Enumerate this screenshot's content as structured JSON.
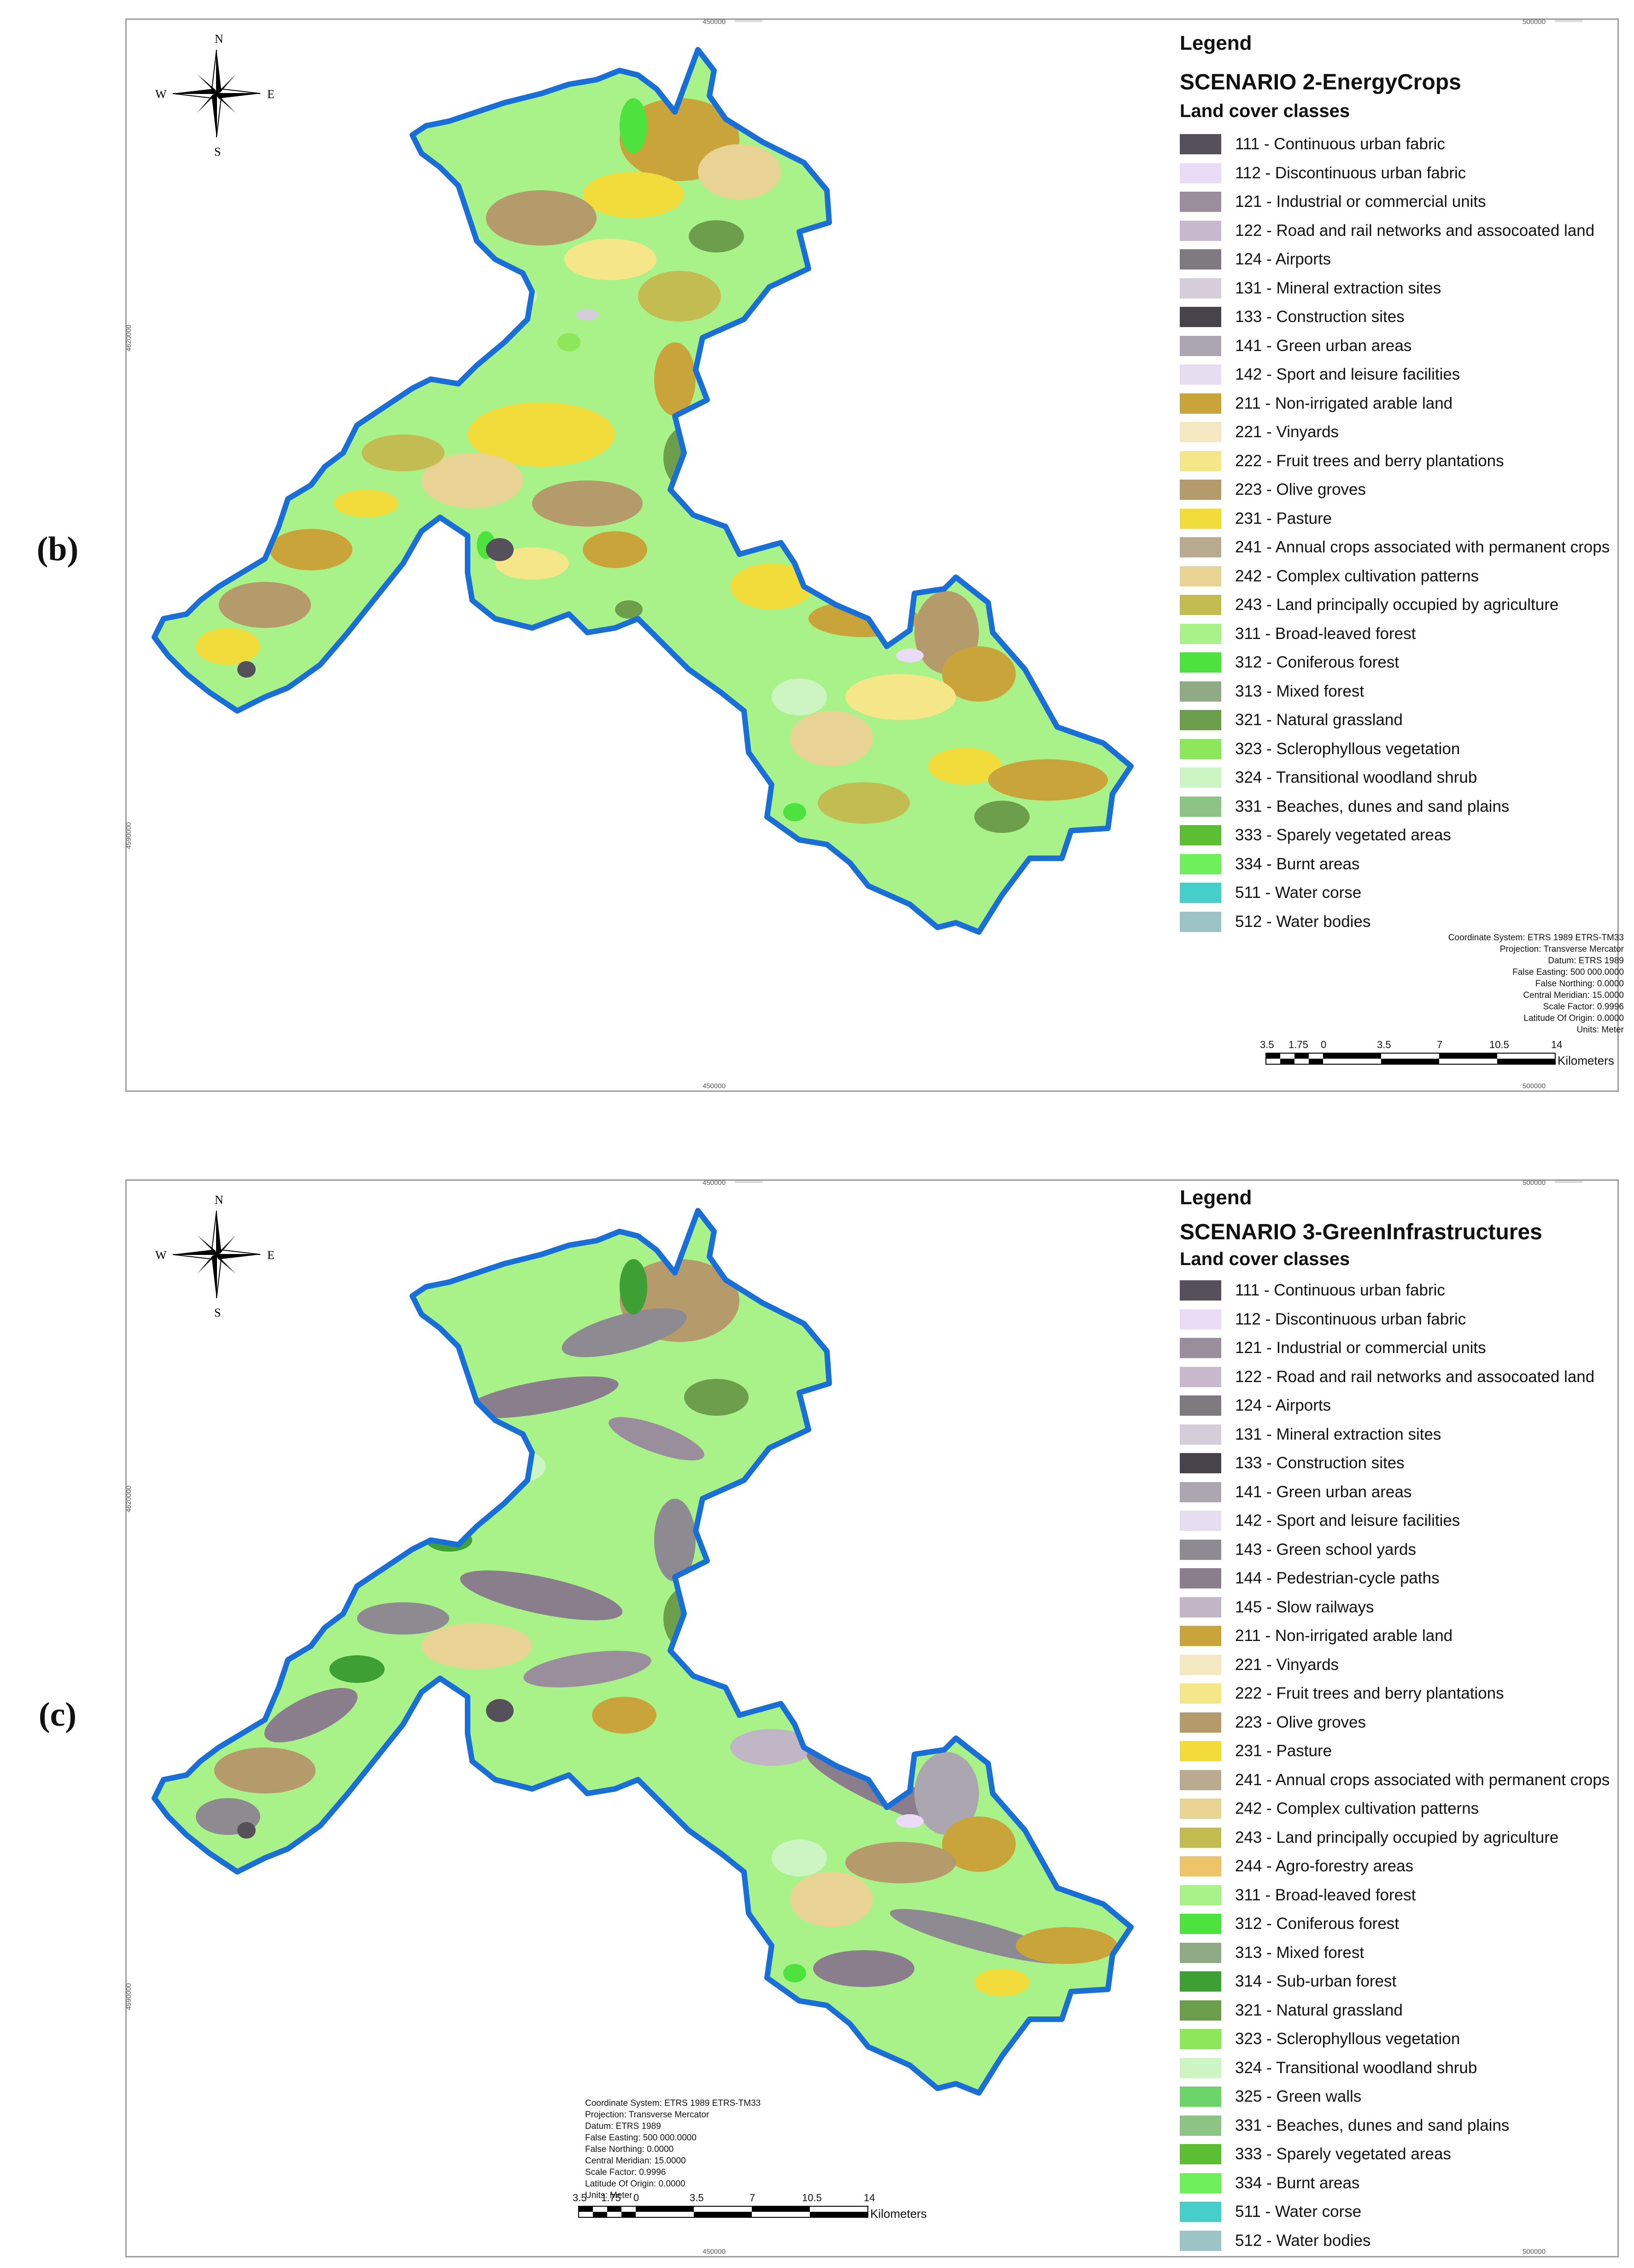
{
  "panels": [
    {
      "label": "(b)",
      "grid_ticks": {
        "top_x": [
          "450000",
          "500000"
        ],
        "bottom_x": [
          "450000",
          "500000"
        ],
        "left_y": [
          "4620000",
          "4590000"
        ]
      },
      "compass": {
        "n": "N",
        "s": "S",
        "e": "E",
        "w": "W"
      },
      "legend": {
        "title": "Legend",
        "scenario": "SCENARIO 2-EnergyCrops",
        "subtitle": "Land cover classes",
        "items": [
          {
            "label": "111 - Continuous urban fabric",
            "color": "#55505a"
          },
          {
            "label": "112 - Discontinuous urban fabric",
            "color": "#eadcf6"
          },
          {
            "label": "121 - Industrial or commercial units",
            "color": "#9a8e9c"
          },
          {
            "label": "122 - Road and rail networks and assocoated land",
            "color": "#c7b8ce"
          },
          {
            "label": "124 - Airports",
            "color": "#7e7a80"
          },
          {
            "label": "131 - Mineral extraction sites",
            "color": "#d5cdd9"
          },
          {
            "label": "133 - Construction sites",
            "color": "#46434a"
          },
          {
            "label": "141 - Green urban areas",
            "color": "#aca6b0"
          },
          {
            "label": "142 - Sport and leisure facilities",
            "color": "#e6def0"
          },
          {
            "label": "211 - Non-irrigated arable land",
            "color": "#c9a43a"
          },
          {
            "label": "221 - Vinyards",
            "color": "#f3e8c2"
          },
          {
            "label": "222 - Fruit trees and berry plantations",
            "color": "#f5e68a"
          },
          {
            "label": "223 - Olive groves",
            "color": "#b59a6c"
          },
          {
            "label": "231 - Pasture",
            "color": "#f2dc3c"
          },
          {
            "label": "241 - Annual crops associated with permanent crops",
            "color": "#b8ab8f"
          },
          {
            "label": "242 - Complex cultivation patterns",
            "color": "#e9d394"
          },
          {
            "label": "243 - Land principally occupied by agriculture",
            "color": "#c2bc52"
          },
          {
            "label": "311 - Broad-leaved forest",
            "color": "#a9f28a"
          },
          {
            "label": "312 - Coniferous forest",
            "color": "#4ee23e"
          },
          {
            "label": "313 - Mixed forest",
            "color": "#8faa84"
          },
          {
            "label": "321 - Natural grassland",
            "color": "#6c9e4b"
          },
          {
            "label": "323 - Sclerophyllous vegetation",
            "color": "#8ee65a"
          },
          {
            "label": "324 - Transitional woodland shrub",
            "color": "#cdf5c3"
          },
          {
            "label": "331 - Beaches, dunes and sand plains",
            "color": "#8dc384"
          },
          {
            "label": "333 - Sparely vegetated areas",
            "color": "#5cbf33"
          },
          {
            "label": "334 - Burnt areas",
            "color": "#6ef05a"
          },
          {
            "label": "511 - Water corse",
            "color": "#46cfca"
          },
          {
            "label": "512 - Water bodies",
            "color": "#9cc4c4"
          }
        ]
      },
      "coordinate_system": {
        "lines": [
          "Coordinate System: ETRS 1989 ETRS-TM33",
          "Projection: Transverse Mercator",
          "Datum: ETRS 1989",
          "False Easting: 500 000.0000",
          "False Northing: 0.0000",
          "Central Meridian: 15.0000",
          "Scale Factor: 0.9996",
          "Latitude Of Origin: 0.0000",
          "Units: Meter"
        ]
      },
      "scalebar": {
        "ticks": [
          "3.5",
          "1.75",
          "0",
          "3.5",
          "7",
          "10.5",
          "14"
        ],
        "unit": "Kilometers"
      }
    },
    {
      "label": "(c)",
      "grid_ticks": {
        "top_x": [
          "450000",
          "500000"
        ],
        "bottom_x": [
          "450000",
          "500000"
        ],
        "left_y": [
          "4620000",
          "4590000"
        ]
      },
      "compass": {
        "n": "N",
        "s": "S",
        "e": "E",
        "w": "W"
      },
      "legend": {
        "title": "Legend",
        "scenario": "SCENARIO 3-GreenInfrastructures",
        "subtitle": "Land cover classes",
        "items": [
          {
            "label": "111 - Continuous urban fabric",
            "color": "#55505a"
          },
          {
            "label": "112 - Discontinuous urban fabric",
            "color": "#eadcf6"
          },
          {
            "label": "121 - Industrial or commercial units",
            "color": "#9a8e9c"
          },
          {
            "label": "122 - Road and rail networks and assocoated land",
            "color": "#c7b8ce"
          },
          {
            "label": "124 - Airports",
            "color": "#7e7a80"
          },
          {
            "label": "131 - Mineral extraction sites",
            "color": "#d5cdd9"
          },
          {
            "label": "133 - Construction sites",
            "color": "#46434a"
          },
          {
            "label": "141 - Green urban areas",
            "color": "#aca6b0"
          },
          {
            "label": "142 - Sport and leisure facilities",
            "color": "#e6def0"
          },
          {
            "label": "143 - Green school yards",
            "color": "#8e8a92"
          },
          {
            "label": "144 - Pedestrian-cycle paths",
            "color": "#8a7e8c"
          },
          {
            "label": "145 - Slow railways",
            "color": "#c0b6c6"
          },
          {
            "label": "211 - Non-irrigated arable land",
            "color": "#c9a43a"
          },
          {
            "label": "221 - Vinyards",
            "color": "#f3e8c2"
          },
          {
            "label": "222 - Fruit trees and berry plantations",
            "color": "#f5e68a"
          },
          {
            "label": "223 - Olive groves",
            "color": "#b59a6c"
          },
          {
            "label": "231 - Pasture",
            "color": "#f2dc3c"
          },
          {
            "label": "241 - Annual crops associated with permanent crops",
            "color": "#b8ab8f"
          },
          {
            "label": "242 - Complex cultivation patterns",
            "color": "#e9d394"
          },
          {
            "label": "243 - Land principally occupied by agriculture",
            "color": "#c2bc52"
          },
          {
            "label": "244 - Agro-forestry areas",
            "color": "#edc46a"
          },
          {
            "label": "311 - Broad-leaved forest",
            "color": "#a9f28a"
          },
          {
            "label": "312 - Coniferous forest",
            "color": "#4ee23e"
          },
          {
            "label": "313 - Mixed forest",
            "color": "#8faa84"
          },
          {
            "label": "314 - Sub-urban forest",
            "color": "#3e9f34"
          },
          {
            "label": "321 - Natural grassland",
            "color": "#6c9e4b"
          },
          {
            "label": "323 - Sclerophyllous vegetation",
            "color": "#8ee65a"
          },
          {
            "label": "324 - Transitional woodland shrub",
            "color": "#cdf5c3"
          },
          {
            "label": "325 - Green walls",
            "color": "#6dd46a"
          },
          {
            "label": "331 - Beaches, dunes and sand plains",
            "color": "#8dc384"
          },
          {
            "label": "333 - Sparely vegetated areas",
            "color": "#5cbf33"
          },
          {
            "label": "334 - Burnt areas",
            "color": "#6ef05a"
          },
          {
            "label": "511 - Water corse",
            "color": "#46cfca"
          },
          {
            "label": "512 - Water bodies",
            "color": "#9cc4c4"
          }
        ]
      },
      "coordinate_system": {
        "lines": [
          "Coordinate System: ETRS 1989 ETRS-TM33",
          "Projection: Transverse Mercator",
          "Datum: ETRS 1989",
          "False Easting: 500 000.0000",
          "False Northing: 0.0000",
          "Central Meridian: 15.0000",
          "Scale Factor: 0.9996",
          "Latitude Of Origin: 0.0000",
          "Units: Meter"
        ]
      },
      "scalebar": {
        "ticks": [
          "3.5",
          "1.75",
          "0",
          "3.5",
          "7",
          "10.5",
          "14"
        ],
        "unit": "Kilometers"
      }
    }
  ]
}
